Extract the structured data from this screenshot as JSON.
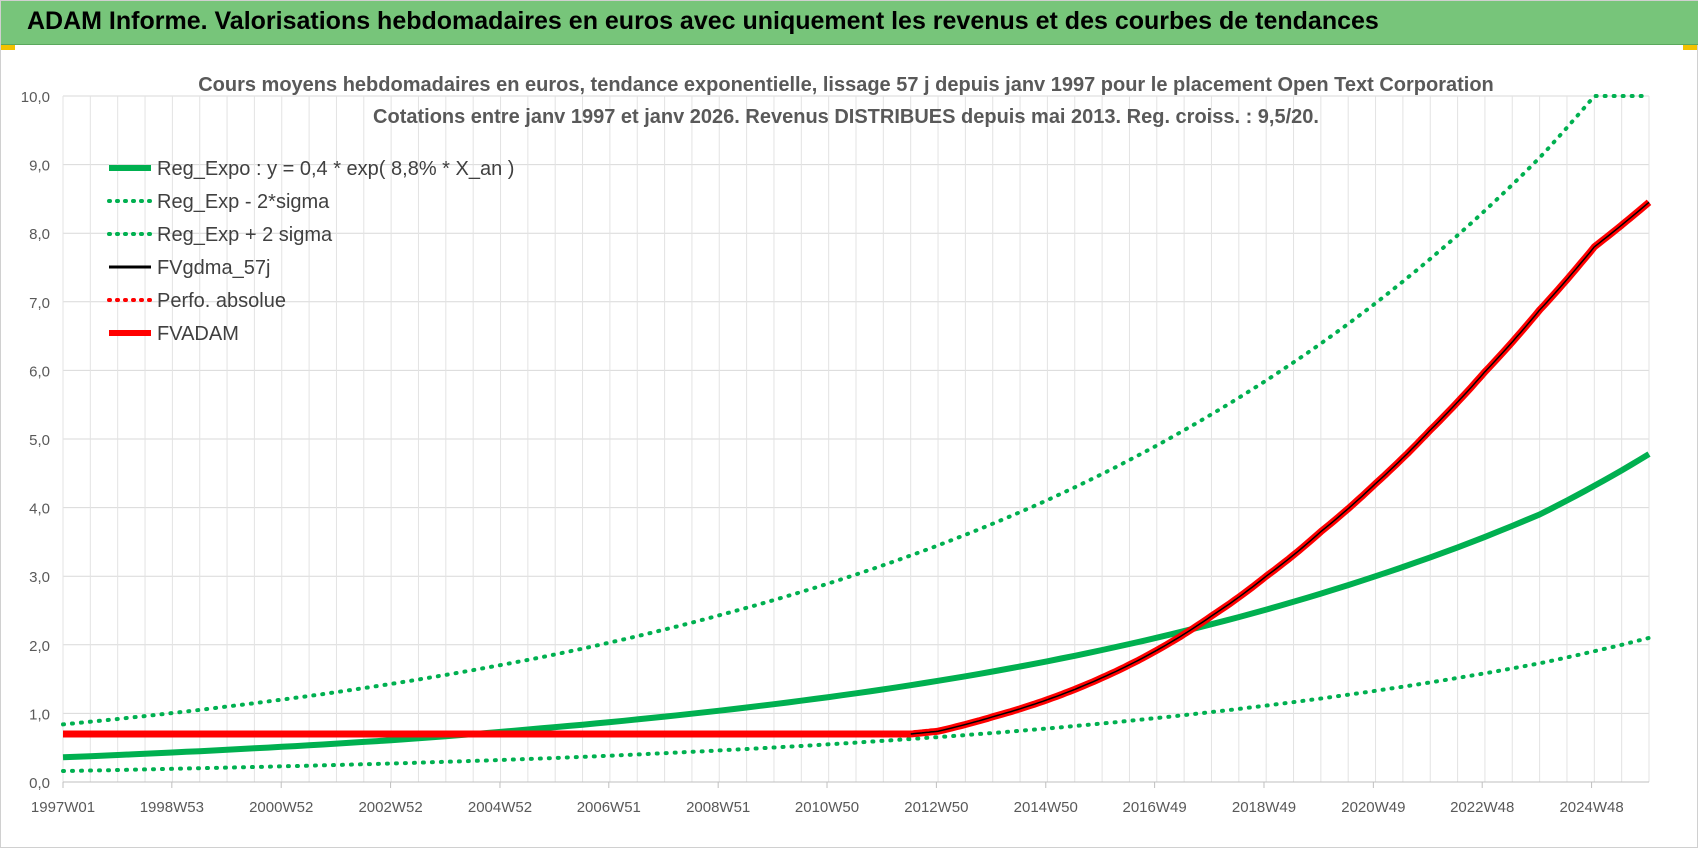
{
  "header": {
    "title": "ADAM Informe. Valorisations hebdomadaires en euros avec uniquement les revenus et des courbes de tendances"
  },
  "colors": {
    "header_bg": "#77c57a",
    "trend_green": "#00b050",
    "red": "#ff0000",
    "black": "#000000"
  },
  "chart_data": {
    "type": "line",
    "title_line1": "Cours moyens hebdomadaires en euros, tendance exponentielle, lissage 57 j depuis janv 1997 pour le placement Open Text Corporation",
    "title_line2": "Cotations entre janv 1997 et janv 2026. Revenus DISTRIBUES depuis mai 2013. Reg. croiss. : 9,5/20.",
    "xlabel": "",
    "ylabel": "",
    "ylim": [
      0,
      10
    ],
    "yticks": [
      "0,0",
      "1,0",
      "2,0",
      "3,0",
      "4,0",
      "5,0",
      "6,0",
      "7,0",
      "8,0",
      "9,0",
      "10,0"
    ],
    "x_range": [
      1997.0,
      2026.0
    ],
    "x_ticks": [
      {
        "x": 1997.0,
        "label": "1997W01"
      },
      {
        "x": 1998.99,
        "label": "1998W53"
      },
      {
        "x": 2000.99,
        "label": "2000W52"
      },
      {
        "x": 2002.99,
        "label": "2002W52"
      },
      {
        "x": 2004.99,
        "label": "2004W52"
      },
      {
        "x": 2006.98,
        "label": "2006W51"
      },
      {
        "x": 2008.98,
        "label": "2008W51"
      },
      {
        "x": 2010.97,
        "label": "2010W50"
      },
      {
        "x": 2012.97,
        "label": "2012W50"
      },
      {
        "x": 2014.97,
        "label": "2014W50"
      },
      {
        "x": 2016.96,
        "label": "2016W49"
      },
      {
        "x": 2018.96,
        "label": "2018W49"
      },
      {
        "x": 2020.96,
        "label": "2020W49"
      },
      {
        "x": 2022.95,
        "label": "2022W48"
      },
      {
        "x": 2024.95,
        "label": "2024W48"
      }
    ],
    "grid": true,
    "legend_position": "top-left",
    "series": [
      {
        "name": "Reg_Expo : y = 0,4 * exp( 8,8% *  X_an )",
        "style": "solid-thick",
        "color": "#00b050",
        "x": [
          1997,
          2000,
          2003,
          2006,
          2009,
          2012,
          2015,
          2018,
          2021,
          2024,
          2026
        ],
        "y": [
          0.36,
          0.47,
          0.61,
          0.8,
          1.04,
          1.35,
          1.76,
          2.3,
          3.0,
          3.9,
          4.78
        ]
      },
      {
        "name": "Reg_Exp - 2*sigma",
        "style": "dotted",
        "color": "#00b050",
        "x": [
          1997,
          2000,
          2003,
          2006,
          2009,
          2012,
          2015,
          2018,
          2021,
          2024,
          2026
        ],
        "y": [
          0.16,
          0.21,
          0.27,
          0.35,
          0.46,
          0.6,
          0.78,
          1.02,
          1.33,
          1.73,
          2.1
        ]
      },
      {
        "name": "Reg_Exp + 2 sigma",
        "style": "dotted",
        "color": "#00b050",
        "x": [
          1997,
          2000,
          2003,
          2006,
          2009,
          2012,
          2015,
          2018,
          2021,
          2024,
          2025.0,
          2026
        ],
        "y": [
          0.84,
          1.1,
          1.43,
          1.86,
          2.43,
          3.16,
          4.11,
          5.36,
          6.98,
          9.1,
          10.0,
          10.0
        ]
      },
      {
        "name": "FVgdma_57j",
        "style": "solid",
        "color": "#000000",
        "x": [
          1997,
          2012.5,
          2013.0,
          2014.0,
          2015.0,
          2016.0,
          2017.0,
          2018.0,
          2019.0,
          2020.0,
          2021.0,
          2022.0,
          2023.0,
          2024.0,
          2025.0,
          2026.0
        ],
        "y": [
          0.7,
          0.7,
          0.74,
          0.95,
          1.2,
          1.52,
          1.92,
          2.42,
          3.0,
          3.65,
          4.35,
          5.13,
          5.98,
          6.88,
          7.8,
          8.45
        ]
      },
      {
        "name": "Perfo. absolue",
        "style": "dotted",
        "color": "#ff0000",
        "x": [],
        "y": []
      },
      {
        "name": "FVADAM",
        "style": "solid-thick",
        "color": "#ff0000",
        "x": [
          1997,
          2012.5,
          2013.0,
          2014.0,
          2015.0,
          2016.0,
          2017.0,
          2018.0,
          2019.0,
          2020.0,
          2021.0,
          2022.0,
          2023.0,
          2024.0,
          2025.0,
          2026.0
        ],
        "y": [
          0.7,
          0.7,
          0.74,
          0.95,
          1.2,
          1.52,
          1.92,
          2.42,
          3.0,
          3.65,
          4.35,
          5.13,
          5.98,
          6.88,
          7.8,
          8.45
        ]
      }
    ]
  }
}
